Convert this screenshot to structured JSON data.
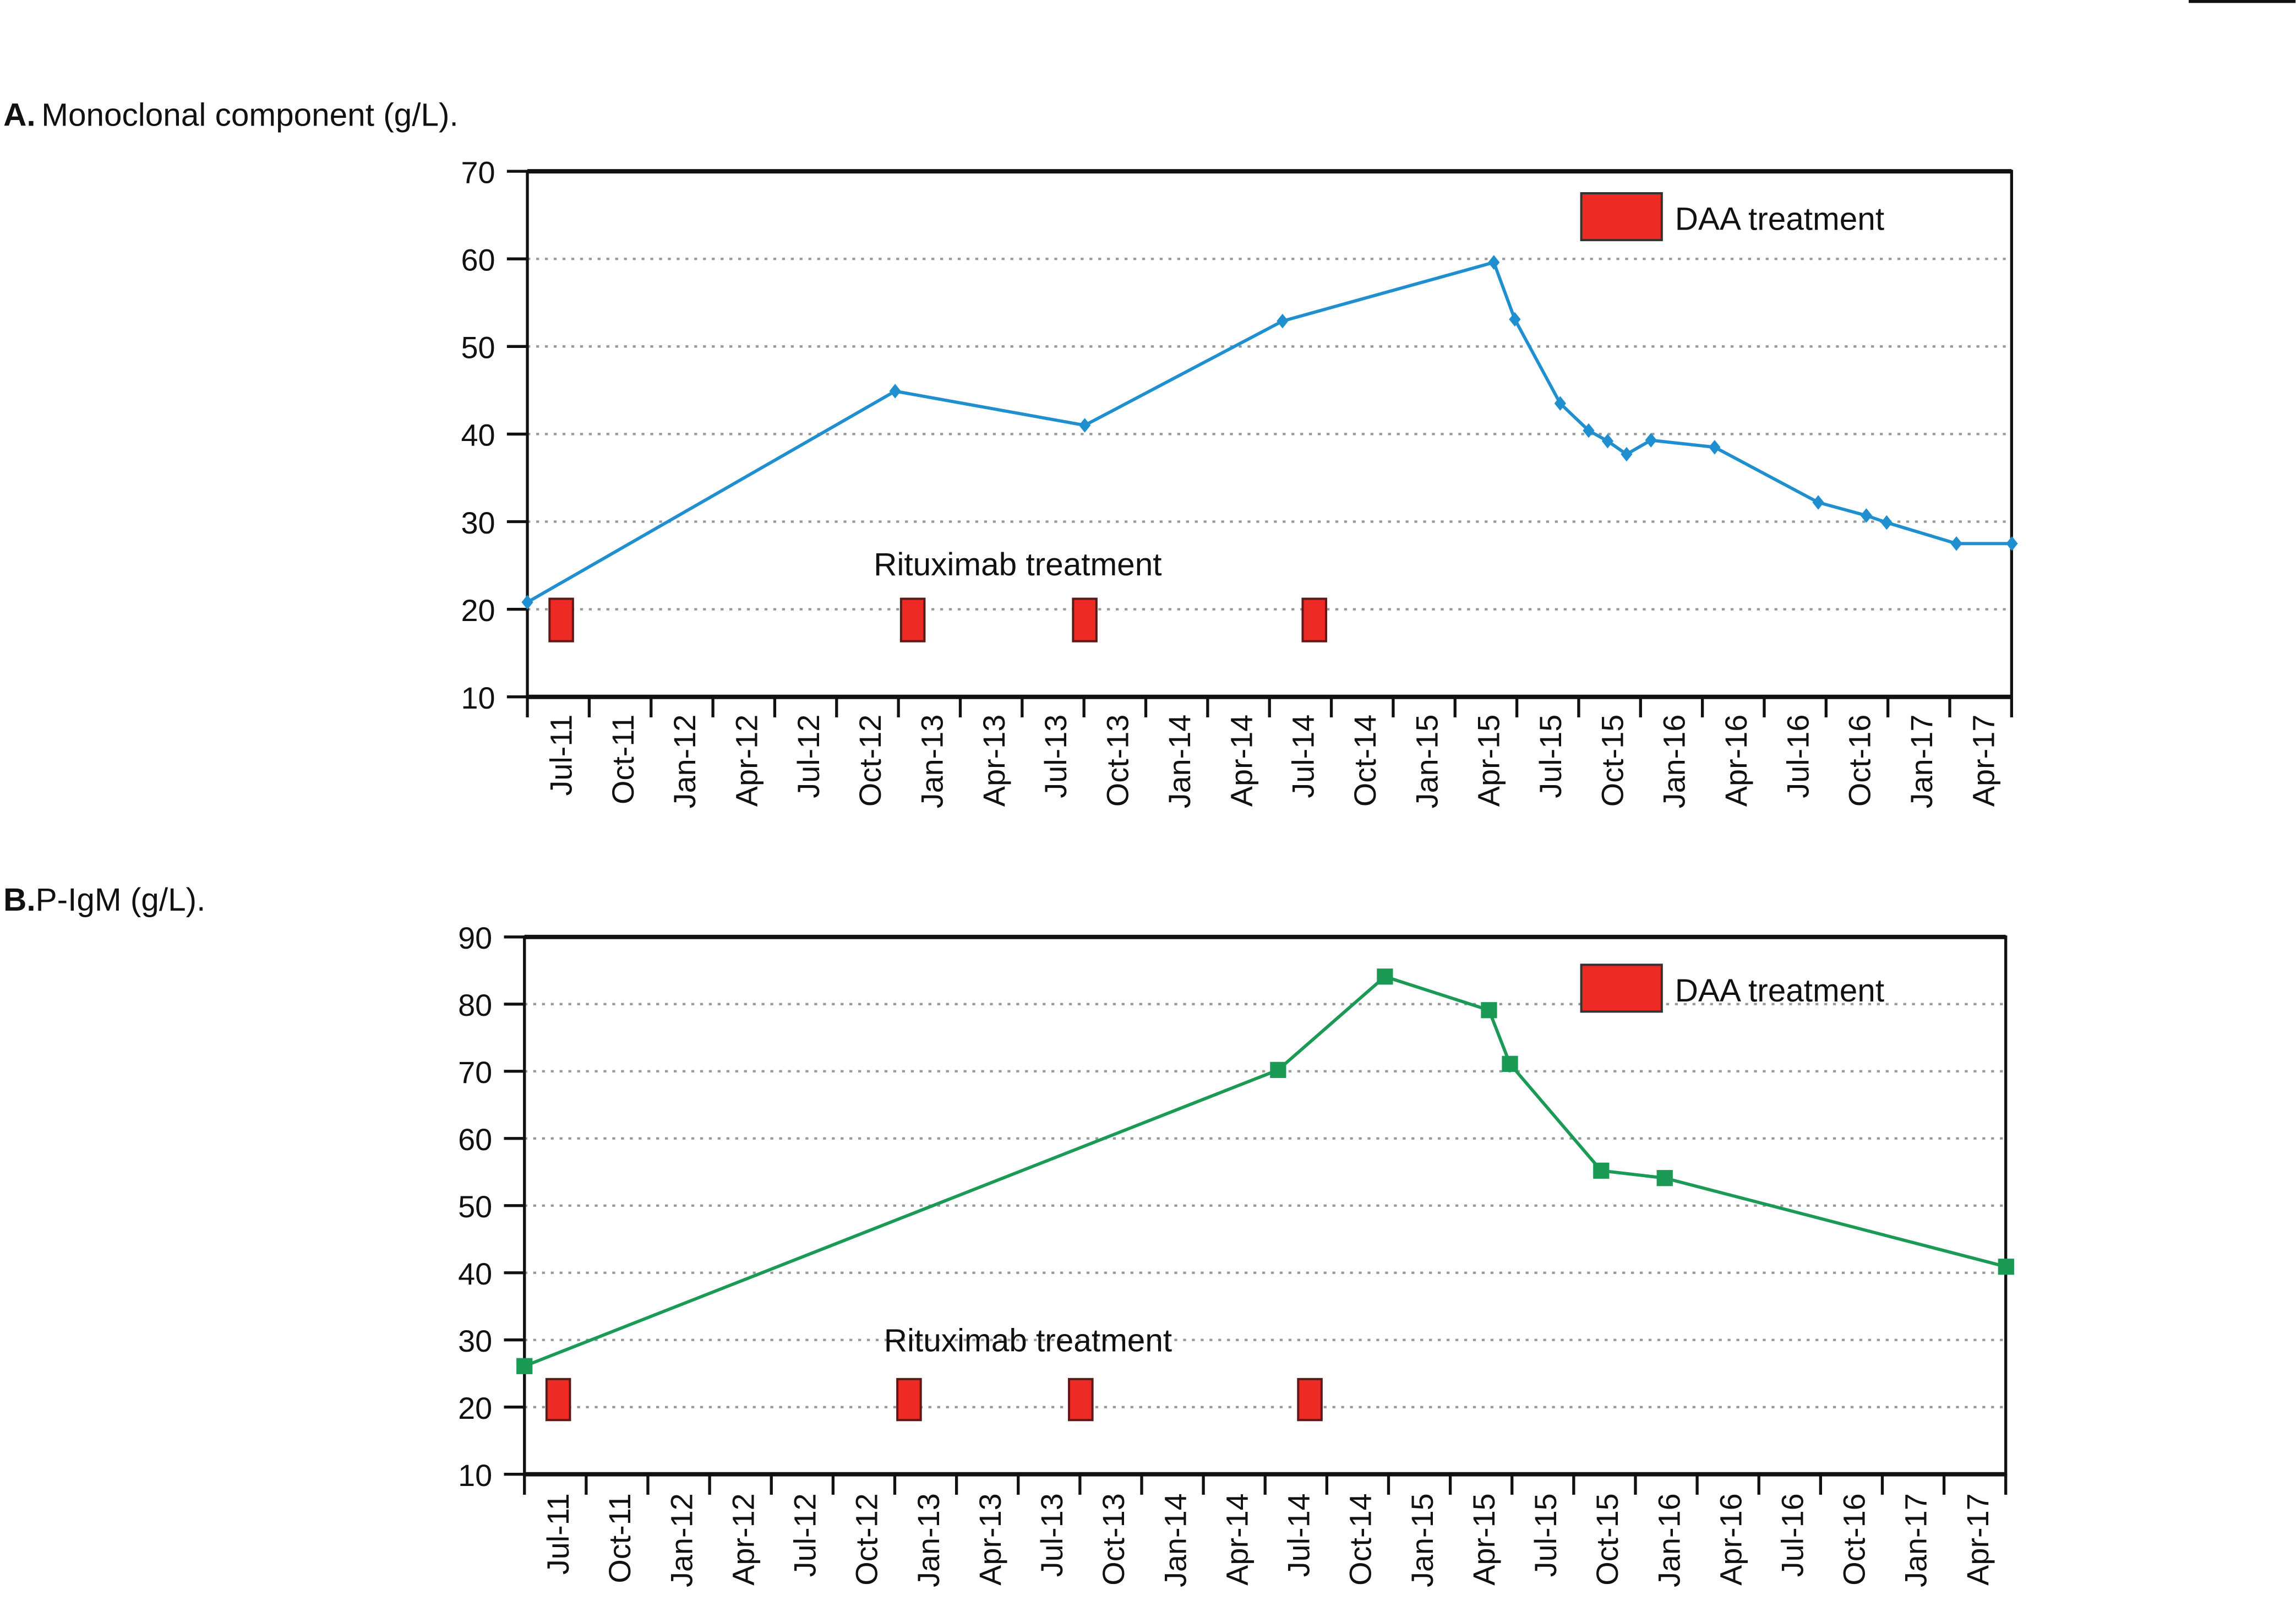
{
  "colors": {
    "series_a": "#1f8fd0",
    "series_b": "#1a9a55",
    "treatment": "#ee2a24",
    "axis": "#111111",
    "grid": "#999999"
  },
  "chart_data": [
    {
      "type": "line",
      "panel_letter": "A.",
      "title": "Monoclonal component (g/L).",
      "ylim": [
        10,
        70
      ],
      "yticks": [
        10,
        20,
        30,
        40,
        50,
        60,
        70
      ],
      "x_start": "2011-07-01",
      "xticks": [
        "Jul-11",
        "Oct-11",
        "Jan-12",
        "Apr-12",
        "Jul-12",
        "Oct-12",
        "Jan-13",
        "Apr-13",
        "Jul-13",
        "Oct-13",
        "Jan-14",
        "Apr-14",
        "Jul-14",
        "Oct-14",
        "Jan-15",
        "Apr-15",
        "Jul-15",
        "Oct-15",
        "Jan-16",
        "Apr-16",
        "Jul-16",
        "Oct-16",
        "Jan-17",
        "Apr-17"
      ],
      "grid": "horizontal dotted",
      "marker": "diamond",
      "x": [
        "2011-07-01",
        "2012-12-25",
        "2013-10-01",
        "2014-07-20",
        "2015-05-28",
        "2015-06-28",
        "2015-09-03",
        "2015-10-15",
        "2015-11-12",
        "2015-12-10",
        "2016-01-15",
        "2016-04-18",
        "2016-09-18",
        "2016-11-28",
        "2016-12-28",
        "2017-04-10",
        "2017-07-01"
      ],
      "y": [
        20.8,
        44.9,
        41.0,
        52.9,
        59.6,
        53.1,
        43.5,
        40.4,
        39.2,
        37.7,
        39.3,
        38.5,
        32.2,
        30.7,
        29.9,
        27.5,
        27.5
      ],
      "rituximab_dates": [
        "2011-08-20",
        "2013-01-20",
        "2013-10-01",
        "2014-09-05"
      ],
      "rituximab_label": "Rituximab treatment",
      "legend": {
        "label": "DAA treatment",
        "position": "top-right"
      }
    },
    {
      "type": "line",
      "panel_letter": "B.",
      "title": "P-IgM (g/L).",
      "ylim": [
        10,
        90
      ],
      "yticks": [
        10,
        20,
        30,
        40,
        50,
        60,
        70,
        80,
        90
      ],
      "x_start": "2011-07-01",
      "xticks": [
        "Jul-11",
        "Oct-11",
        "Jan-12",
        "Apr-12",
        "Jul-12",
        "Oct-12",
        "Jan-13",
        "Apr-13",
        "Jul-13",
        "Oct-13",
        "Jan-14",
        "Apr-14",
        "Jul-14",
        "Oct-14",
        "Jan-15",
        "Apr-15",
        "Jul-15",
        "Oct-15",
        "Jan-16",
        "Apr-16",
        "Jul-16",
        "Oct-16",
        "Jan-17",
        "Apr-17"
      ],
      "grid": "horizontal dotted",
      "marker": "square",
      "x": [
        "2011-07-01",
        "2014-07-20",
        "2014-12-25",
        "2015-05-28",
        "2015-06-28",
        "2015-11-10",
        "2016-02-12",
        "2017-07-01"
      ],
      "y": [
        26.1,
        70.2,
        84.1,
        79.1,
        71.1,
        55.2,
        54.1,
        40.9
      ],
      "rituximab_dates": [
        "2011-08-20",
        "2013-01-20",
        "2013-10-01",
        "2014-09-05"
      ],
      "rituximab_label": "Rituximab treatment",
      "legend": {
        "label": "DAA treatment",
        "position": "top-right"
      }
    }
  ]
}
